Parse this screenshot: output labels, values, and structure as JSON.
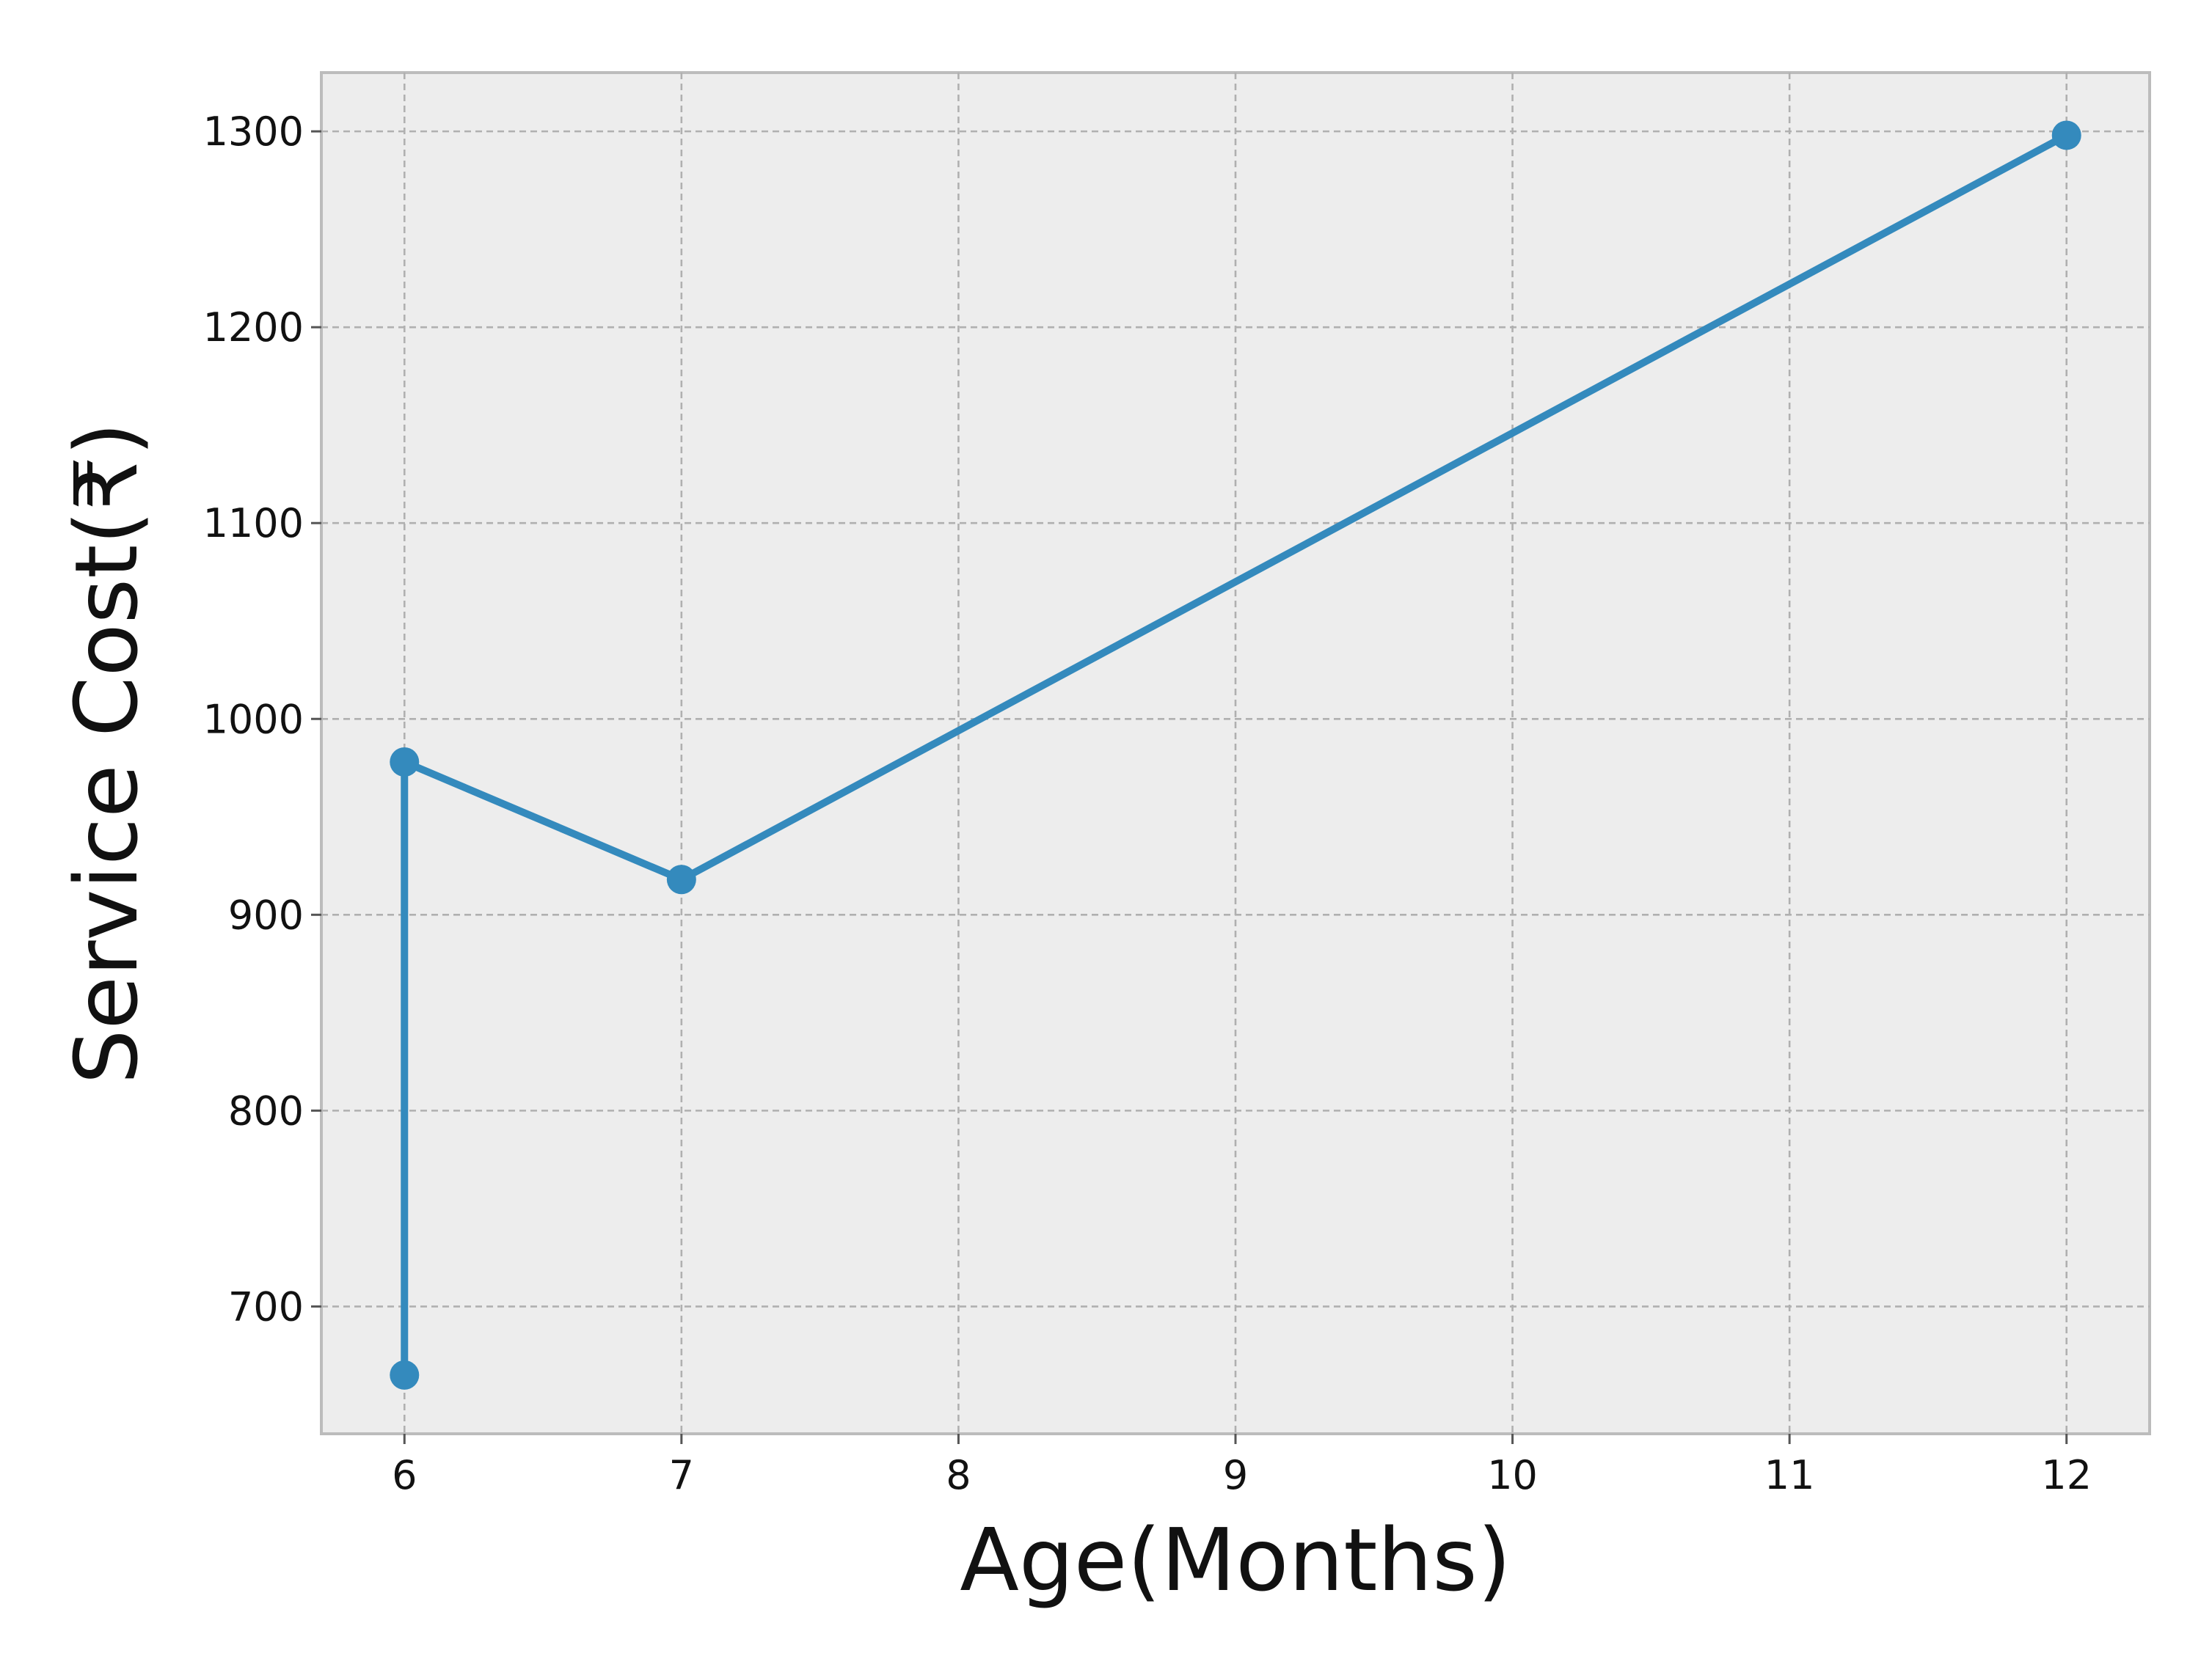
{
  "chart_data": {
    "type": "line",
    "title": "",
    "xlabel": "Age(Months)",
    "ylabel": "Service Cost(₹)",
    "xlim": [
      5.7,
      12.3
    ],
    "ylim": [
      635,
      1330
    ],
    "xticks": [
      6,
      7,
      8,
      9,
      10,
      11,
      12
    ],
    "yticks": [
      700,
      800,
      900,
      1000,
      1100,
      1200,
      1300
    ],
    "grid": true,
    "legend": "none",
    "series": [
      {
        "color": "#348abd",
        "marker": "circle",
        "points": [
          {
            "x": 6,
            "y": 665
          },
          {
            "x": 6,
            "y": 978
          },
          {
            "x": 7,
            "y": 918
          },
          {
            "x": 12,
            "y": 1298
          }
        ]
      }
    ],
    "colors": {
      "plot_background": "#ededed",
      "frame": "#bcbcbc",
      "grid": "#b0b0b0",
      "line": "#348abd"
    }
  }
}
